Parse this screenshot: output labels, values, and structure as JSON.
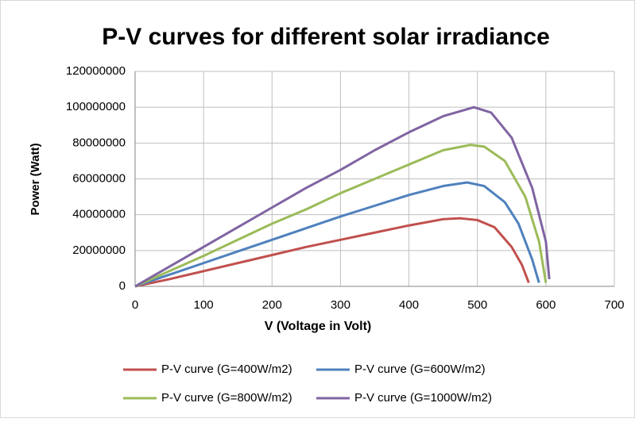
{
  "chart_data": {
    "type": "line",
    "title": "P-V curves for different solar irradiance",
    "xlabel": "V (Voltage in Volt)",
    "ylabel": "Power (Watt)",
    "xlim": [
      0,
      700
    ],
    "xticks": [
      0,
      100,
      200,
      300,
      400,
      500,
      600,
      700
    ],
    "ylim": [
      0,
      120000000
    ],
    "yticks": [
      0,
      20000000,
      40000000,
      60000000,
      80000000,
      100000000,
      120000000
    ],
    "grid": true,
    "legend": "bottom",
    "series": [
      {
        "name": "P-V curve (G=400W/m2)",
        "color": "#c0504d",
        "x": [
          0,
          50,
          100,
          150,
          200,
          250,
          300,
          350,
          400,
          450,
          475,
          500,
          525,
          550,
          565,
          575
        ],
        "values": [
          0,
          4000000,
          8500000,
          13000000,
          17500000,
          22000000,
          26000000,
          30000000,
          34000000,
          37500000,
          38000000,
          37000000,
          33000000,
          22000000,
          12000000,
          2000000
        ]
      },
      {
        "name": "P-V curve (G=600W/m2)",
        "color": "#4f81bd",
        "x": [
          0,
          50,
          100,
          150,
          200,
          250,
          300,
          350,
          400,
          450,
          485,
          510,
          540,
          560,
          580,
          590
        ],
        "values": [
          0,
          6500000,
          13000000,
          19500000,
          26000000,
          32500000,
          39000000,
          45000000,
          51000000,
          56000000,
          58000000,
          56000000,
          47000000,
          35000000,
          15000000,
          2000000
        ]
      },
      {
        "name": "P-V curve (G=800W/m2)",
        "color": "#9bbb59",
        "x": [
          0,
          50,
          100,
          150,
          200,
          250,
          300,
          350,
          400,
          450,
          490,
          510,
          540,
          570,
          590,
          600
        ],
        "values": [
          0,
          8500000,
          17000000,
          26000000,
          35000000,
          43000000,
          52000000,
          60000000,
          68000000,
          76000000,
          79000000,
          78000000,
          70000000,
          50000000,
          25000000,
          2000000
        ]
      },
      {
        "name": "P-V curve (G=1000W/m2)",
        "color": "#8064a2",
        "x": [
          0,
          50,
          100,
          150,
          200,
          250,
          300,
          350,
          400,
          450,
          495,
          520,
          550,
          580,
          600,
          605
        ],
        "values": [
          0,
          11000000,
          22000000,
          33000000,
          44000000,
          55000000,
          65000000,
          76000000,
          86000000,
          95000000,
          100000000,
          97000000,
          83000000,
          55000000,
          25000000,
          4000000
        ]
      }
    ]
  }
}
